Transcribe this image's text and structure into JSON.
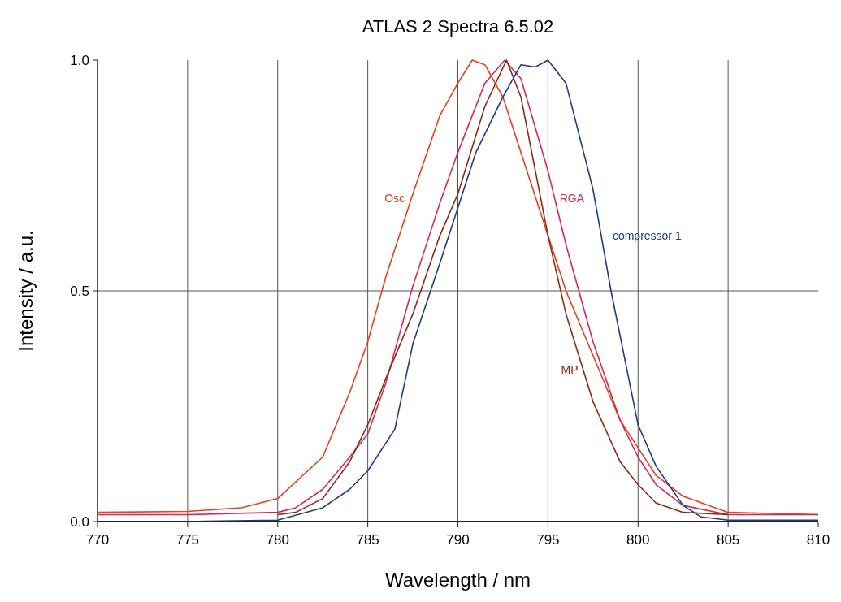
{
  "chart_data": {
    "type": "line",
    "title": "ATLAS 2 Spectra   6.5.02",
    "xlabel": "Wavelength / nm",
    "ylabel": "Intensity / a.u.",
    "xlim": [
      770,
      810
    ],
    "xticks": [
      770,
      775,
      780,
      785,
      790,
      795,
      800,
      805,
      810
    ],
    "ylim": [
      0,
      1
    ],
    "yticks": [
      {
        "value": 0,
        "label": "0.0"
      },
      {
        "value": 0.5,
        "label": "0.5"
      },
      {
        "value": 1,
        "label": "1.0"
      }
    ],
    "grid": true,
    "legend": false,
    "series": [
      {
        "name": "Osc",
        "color": "#e8401c",
        "x": [
          770,
          775,
          778,
          780,
          782.5,
          784,
          785,
          786,
          787.5,
          789,
          790,
          790.8,
          791.5,
          792.5,
          794,
          795,
          796,
          797.5,
          799,
          800,
          801,
          802.5,
          805,
          810
        ],
        "values": [
          0.02,
          0.022,
          0.03,
          0.05,
          0.14,
          0.28,
          0.39,
          0.53,
          0.71,
          0.88,
          0.95,
          1.0,
          0.99,
          0.92,
          0.74,
          0.62,
          0.5,
          0.36,
          0.22,
          0.16,
          0.1,
          0.055,
          0.02,
          0.015
        ]
      },
      {
        "name": "RGA",
        "color": "#d8285a",
        "x": [
          770,
          775,
          780,
          781,
          782.5,
          784,
          785,
          786,
          787.5,
          789,
          790,
          791.5,
          792.6,
          793.5,
          795,
          796,
          797.5,
          799,
          800,
          801,
          802.5,
          805,
          810
        ],
        "values": [
          0.015,
          0.015,
          0.02,
          0.03,
          0.07,
          0.14,
          0.19,
          0.3,
          0.51,
          0.69,
          0.8,
          0.95,
          1.0,
          0.96,
          0.76,
          0.6,
          0.39,
          0.22,
          0.14,
          0.08,
          0.035,
          0.015,
          0.015
        ]
      },
      {
        "name": "MP",
        "color": "#8b2a10",
        "x": [
          780,
          781,
          782.5,
          784,
          785,
          786,
          787.5,
          789,
          790,
          791.5,
          792.7,
          793.5,
          795,
          796,
          797.5,
          799,
          800,
          801,
          802.5,
          805
        ],
        "values": [
          0.015,
          0.02,
          0.05,
          0.13,
          0.21,
          0.31,
          0.45,
          0.62,
          0.71,
          0.9,
          1.0,
          0.92,
          0.62,
          0.45,
          0.26,
          0.13,
          0.08,
          0.04,
          0.02,
          0.015
        ]
      },
      {
        "name": "compressor 1",
        "color": "#1f3a8a",
        "x": [
          770,
          775,
          780,
          782.5,
          784,
          785,
          786.5,
          787.5,
          789,
          790,
          791,
          792.5,
          793.5,
          794.3,
          795,
          796,
          797.5,
          798.5,
          800,
          801,
          802.5,
          803.5,
          805,
          810
        ],
        "values": [
          0.0,
          0.0,
          0.003,
          0.03,
          0.07,
          0.11,
          0.2,
          0.385,
          0.56,
          0.68,
          0.8,
          0.92,
          0.99,
          0.985,
          1.0,
          0.95,
          0.72,
          0.5,
          0.21,
          0.12,
          0.035,
          0.01,
          0.003,
          0.003
        ]
      }
    ]
  }
}
